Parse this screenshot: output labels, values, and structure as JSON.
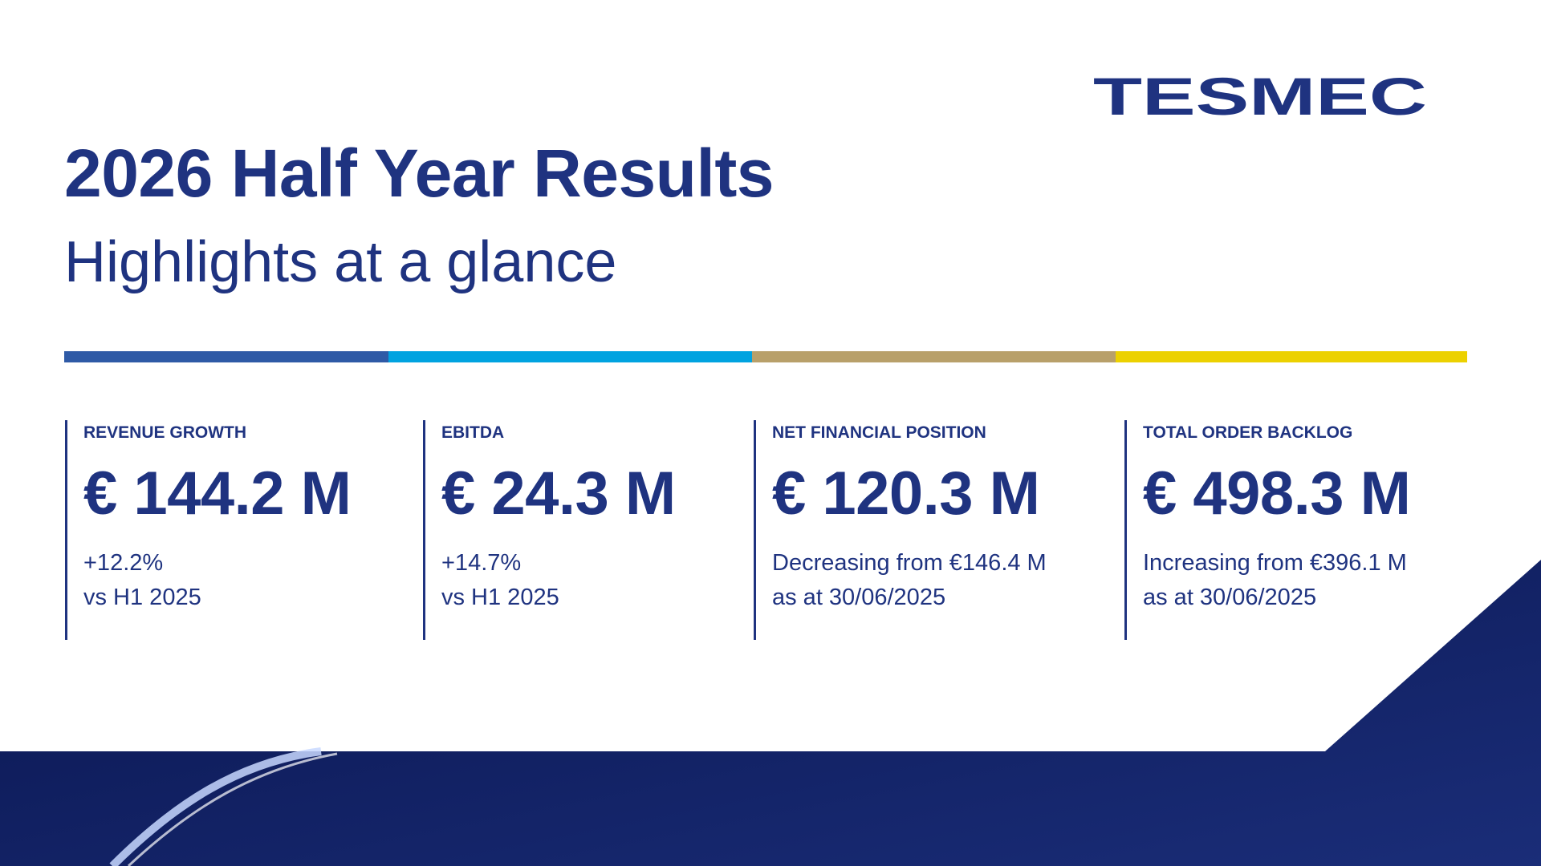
{
  "logo": "TESMEC",
  "header": {
    "title": "2026 Half Year Results",
    "subtitle": "Highlights at a glance"
  },
  "kpis": [
    {
      "label": "REVENUE GROWTH",
      "value": "€ 144.2 M",
      "note": [
        "+12.2%",
        "vs H1 2025"
      ]
    },
    {
      "label": "EBITDA",
      "value": "€ 24.3 M",
      "note": [
        "+14.7%",
        "vs H1 2025"
      ]
    },
    {
      "label": "NET FINANCIAL POSITION",
      "value": "€ 120.3 M",
      "note": [
        "Decreasing from €146.4 M",
        "as at 30/06/2025"
      ]
    },
    {
      "label": "TOTAL ORDER BACKLOG",
      "value": "€ 498.3 M",
      "note": [
        "Increasing from €396.1 M",
        "as at 30/06/2025"
      ]
    }
  ]
}
